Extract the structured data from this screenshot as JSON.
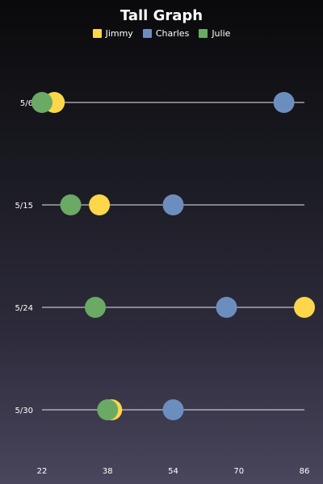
{
  "chart_data": {
    "type": "scatter",
    "title": "Tall Graph",
    "categories": [
      "5/6",
      "5/15",
      "5/24",
      "5/30"
    ],
    "x_ticks": [
      22,
      38,
      54,
      70,
      86
    ],
    "xlim": [
      22,
      86
    ],
    "legend_position": "top",
    "series": [
      {
        "name": "Charles",
        "color": "#6c8ebf",
        "values": [
          81,
          54,
          67,
          54
        ]
      },
      {
        "name": "Jimmy",
        "color": "#fdd64a",
        "values": [
          25,
          36,
          86,
          39
        ]
      },
      {
        "name": "Julie",
        "color": "#6aaa64",
        "values": [
          22,
          29,
          35,
          38
        ]
      }
    ],
    "legend_order": [
      "Jimmy",
      "Charles",
      "Julie"
    ]
  }
}
